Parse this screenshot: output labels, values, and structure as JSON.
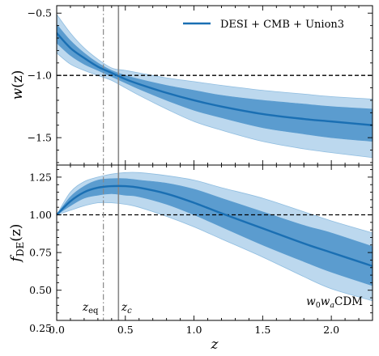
{
  "chart_data": [
    {
      "type": "area",
      "panel": "top",
      "xlabel": "",
      "ylabel": "w(z)",
      "xlim": [
        0,
        2.3
      ],
      "ylim": [
        -1.72,
        -0.44
      ],
      "yticks": [
        -0.5,
        -1.0,
        -1.5
      ],
      "ytick_labels": [
        "−0.5",
        "−1.0",
        "−1.5"
      ],
      "legend": {
        "label": "DESI + CMB + Union3",
        "placement": "top-right",
        "color": "#1a6fb3"
      },
      "reference_line": {
        "y": -1.0,
        "style": "dashed"
      },
      "x": [
        0.0,
        0.1,
        0.2,
        0.3,
        0.4,
        0.5,
        0.6,
        0.8,
        1.0,
        1.2,
        1.5,
        1.8,
        2.0,
        2.3
      ],
      "series": [
        {
          "name": "DESI + CMB + Union3",
          "role": "median",
          "values": [
            -0.66,
            -0.78,
            -0.86,
            -0.93,
            -0.98,
            -1.03,
            -1.07,
            -1.14,
            -1.2,
            -1.25,
            -1.31,
            -1.35,
            -1.37,
            -1.4
          ]
        },
        {
          "role": "1sigma_upper",
          "values": [
            -0.59,
            -0.72,
            -0.82,
            -0.9,
            -0.96,
            -1.0,
            -1.03,
            -1.08,
            -1.12,
            -1.16,
            -1.2,
            -1.23,
            -1.25,
            -1.27
          ]
        },
        {
          "role": "1sigma_lower",
          "values": [
            -0.74,
            -0.84,
            -0.91,
            -0.96,
            -1.01,
            -1.06,
            -1.11,
            -1.2,
            -1.28,
            -1.34,
            -1.42,
            -1.47,
            -1.5,
            -1.53
          ]
        },
        {
          "role": "2sigma_upper",
          "values": [
            -0.51,
            -0.66,
            -0.78,
            -0.87,
            -0.94,
            -0.96,
            -0.98,
            -1.02,
            -1.05,
            -1.08,
            -1.12,
            -1.15,
            -1.17,
            -1.19
          ]
        },
        {
          "role": "2sigma_lower",
          "values": [
            -0.82,
            -0.91,
            -0.96,
            -1.0,
            -1.04,
            -1.1,
            -1.16,
            -1.27,
            -1.37,
            -1.44,
            -1.53,
            -1.59,
            -1.62,
            -1.66
          ]
        }
      ]
    },
    {
      "type": "area",
      "panel": "bottom",
      "xlabel": "z",
      "ylabel": "f_DE(z)",
      "xlim": [
        0,
        2.3
      ],
      "ylim": [
        0.3,
        1.33
      ],
      "xticks": [
        0.0,
        0.5,
        1.0,
        1.5,
        2.0
      ],
      "xtick_labels": [
        "0.0",
        "0.5",
        "1.0",
        "1.5",
        "2.0"
      ],
      "yticks": [
        0.25,
        0.5,
        0.75,
        1.0,
        1.25
      ],
      "ytick_labels": [
        "0.25",
        "0.50",
        "0.75",
        "1.00",
        "1.25"
      ],
      "reference_line": {
        "y": 1.0,
        "style": "dashed"
      },
      "x": [
        0.0,
        0.1,
        0.2,
        0.3,
        0.4,
        0.5,
        0.6,
        0.8,
        1.0,
        1.2,
        1.5,
        1.8,
        2.0,
        2.3
      ],
      "series": [
        {
          "name": "w0waCDM",
          "role": "median",
          "values": [
            1.0,
            1.09,
            1.15,
            1.18,
            1.19,
            1.19,
            1.18,
            1.14,
            1.08,
            1.01,
            0.91,
            0.81,
            0.75,
            0.66
          ]
        },
        {
          "role": "1sigma_upper",
          "values": [
            1.0,
            1.12,
            1.19,
            1.23,
            1.24,
            1.24,
            1.23,
            1.21,
            1.17,
            1.11,
            1.02,
            0.93,
            0.88,
            0.79
          ]
        },
        {
          "role": "1sigma_lower",
          "values": [
            1.0,
            1.06,
            1.11,
            1.13,
            1.14,
            1.13,
            1.12,
            1.07,
            1.0,
            0.92,
            0.8,
            0.69,
            0.62,
            0.53
          ]
        },
        {
          "role": "2sigma_upper",
          "values": [
            1.0,
            1.15,
            1.22,
            1.25,
            1.27,
            1.28,
            1.28,
            1.26,
            1.23,
            1.18,
            1.11,
            1.02,
            0.96,
            0.88
          ]
        },
        {
          "role": "2sigma_lower",
          "values": [
            1.0,
            1.03,
            1.06,
            1.08,
            1.08,
            1.07,
            1.05,
            0.99,
            0.92,
            0.84,
            0.72,
            0.59,
            0.51,
            0.43
          ]
        }
      ]
    }
  ],
  "markers": [
    {
      "label": "z_eq",
      "x": 0.34,
      "style": "dashdot",
      "color": "#888888"
    },
    {
      "label": "z_c",
      "x": 0.45,
      "style": "solid",
      "color": "#888888"
    }
  ],
  "labels": {
    "top_ylabel_main": "w",
    "top_ylabel_arg": "(z)",
    "bottom_ylabel_main": "f",
    "bottom_ylabel_sub": "DE",
    "bottom_ylabel_arg": "(z)",
    "xlabel": "z",
    "z_eq_main": "z",
    "z_eq_sub": "eq",
    "z_c_main": "z",
    "z_c_sub": "c",
    "model_w0": "w",
    "model_w0_sub": "0",
    "model_wa": "w",
    "model_wa_sub": "a",
    "model_suffix": "CDM",
    "legend_label": "DESI + CMB + Union3"
  },
  "colors": {
    "line": "#1a6fb3",
    "band1": "#5b9ccf",
    "band2": "#bcd8ee",
    "band2_edge": "#8fbde0",
    "marker": "#888888"
  }
}
